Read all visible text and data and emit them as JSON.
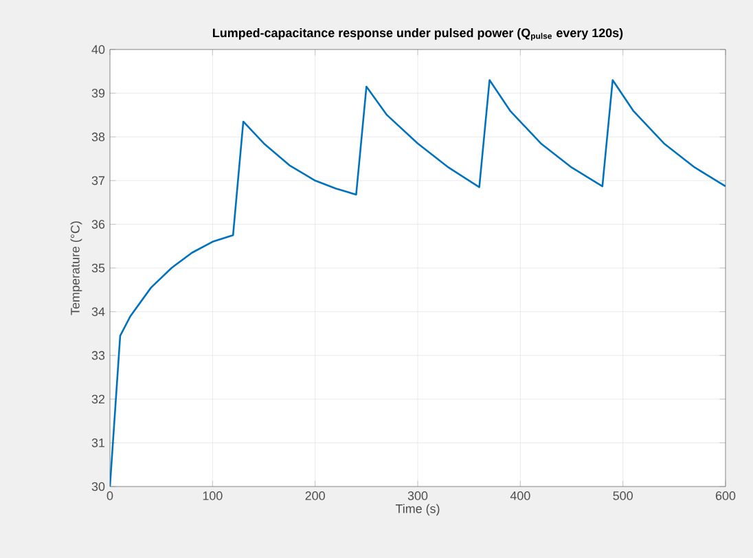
{
  "chart_data": {
    "type": "line",
    "title": "Lumped-capacitance response under pulsed power (Q$_{pulse}$ every 120s)",
    "xlabel": "Time (s)",
    "ylabel": "Temperature (°C)",
    "xlim": [
      0,
      600
    ],
    "ylim": [
      30,
      40
    ],
    "xticks": [
      0,
      100,
      200,
      300,
      400,
      500,
      600
    ],
    "yticks": [
      30,
      31,
      32,
      33,
      34,
      35,
      36,
      37,
      38,
      39,
      40
    ],
    "grid": true,
    "series": [
      {
        "color": "#0072bd",
        "x": [
          0,
          10,
          20,
          40,
          60,
          80,
          100,
          120,
          130,
          150,
          175,
          200,
          220,
          240,
          250,
          270,
          300,
          330,
          360,
          370,
          390,
          420,
          450,
          480,
          490,
          510,
          540,
          570,
          600
        ],
        "values": [
          30,
          33.45,
          33.9,
          34.55,
          35.0,
          35.35,
          35.6,
          35.75,
          38.35,
          37.85,
          37.35,
          37.0,
          36.82,
          36.68,
          39.15,
          38.5,
          37.85,
          37.3,
          36.85,
          39.3,
          38.6,
          37.85,
          37.3,
          36.87,
          39.3,
          38.6,
          37.85,
          37.3,
          36.87
        ]
      }
    ]
  }
}
